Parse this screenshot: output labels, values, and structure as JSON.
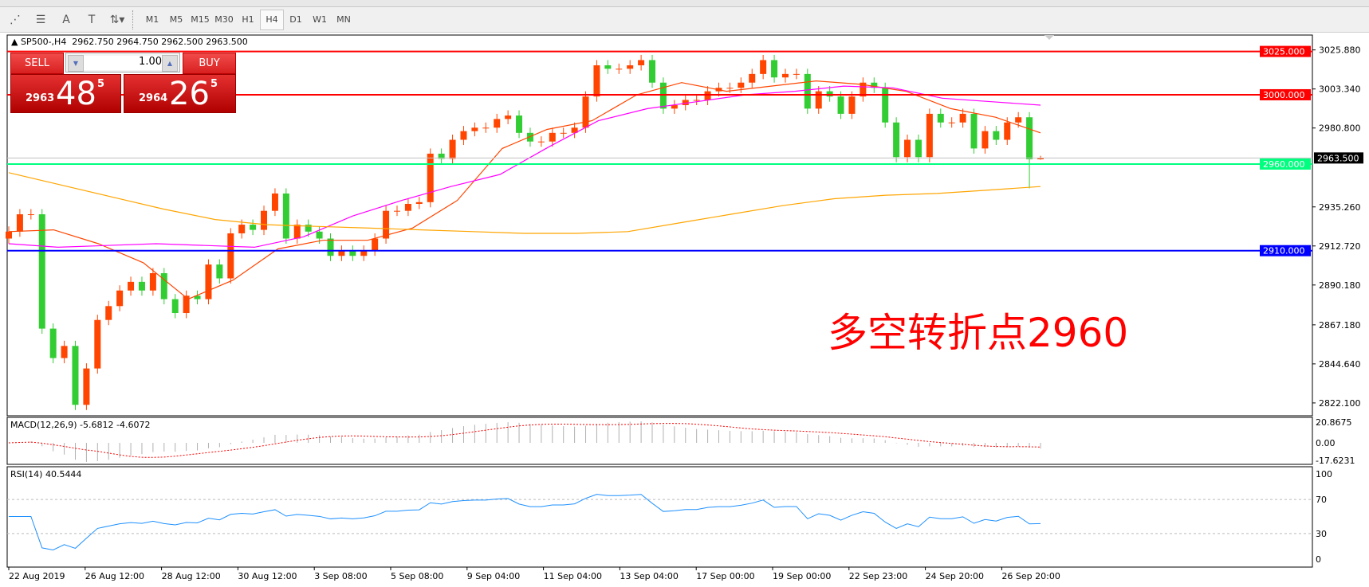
{
  "toolbar": {
    "tools": [
      {
        "icon": "fibonacci-expansion-icon"
      },
      {
        "icon": "fibonacci-fan-icon"
      },
      {
        "icon": "text-icon",
        "label": "A"
      },
      {
        "icon": "text-label-icon",
        "label": "T"
      },
      {
        "icon": "arrows-dropdown-icon"
      }
    ],
    "timeframes": [
      "M1",
      "M5",
      "M15",
      "M30",
      "H1",
      "H4",
      "D1",
      "W1",
      "MN"
    ],
    "active_timeframe": "H4"
  },
  "chart": {
    "header": "SP500-,H4  2962.750 2964.750 2962.500 2963.500",
    "trade_panel": {
      "sell_label": "SELL",
      "buy_label": "BUY",
      "lot": "1.00",
      "sell_price": {
        "prefix": "2963",
        "big": "48",
        "sup": "5"
      },
      "buy_price": {
        "prefix": "2964",
        "big": "26",
        "sup": "5"
      }
    },
    "annotation": "多空转折点2960",
    "annotation_color": "#ff0000"
  },
  "chart_data": {
    "type": "candlestick",
    "symbol": "SP500-",
    "timeframe": "H4",
    "ohlc_last": {
      "open": 2962.75,
      "high": 2964.75,
      "low": 2962.5,
      "close": 2963.5
    },
    "closes": [
      2921,
      2931,
      2931,
      2865,
      2848,
      2855,
      2821,
      2842,
      2870,
      2878,
      2887,
      2892,
      2887,
      2897,
      2882,
      2874,
      2884,
      2882,
      2902,
      2894,
      2920,
      2925,
      2922,
      2933,
      2943,
      2917,
      2925,
      2921,
      2917,
      2907,
      2910,
      2907,
      2910,
      2917,
      2933,
      2933,
      2937,
      2938,
      2966,
      2963,
      2974,
      2979,
      2981,
      2981,
      2986,
      2988,
      2978,
      2973,
      2973,
      2978,
      2978,
      2981,
      2999,
      3017,
      3015,
      3015,
      3017,
      3020,
      3007,
      2992,
      2994,
      2997,
      2997,
      3002,
      3004,
      3004,
      3007,
      3012,
      3020,
      3010,
      3012,
      3012,
      2992,
      3002,
      2999,
      2989,
      2999,
      3007,
      3004,
      2984,
      2964,
      2974,
      2964,
      2989,
      2984,
      2984,
      2989,
      2969,
      2979,
      2974,
      2984,
      2987,
      2962.75,
      2963.5
    ],
    "moving_averages": [
      {
        "color": "#ff4500",
        "values": [
          2921,
          2922,
          2914,
          2903,
          2882,
          2893,
          2911,
          2916,
          2916,
          2923,
          2939,
          2969,
          2980,
          2985,
          3000,
          3007,
          3002,
          3005,
          3008,
          3006,
          3002,
          2992,
          2987,
          2978
        ]
      },
      {
        "color": "#ff00ff",
        "values": [
          2914,
          2912,
          2913,
          2914,
          2913,
          2912,
          2918,
          2930,
          2939,
          2947,
          2954,
          2970,
          2985,
          2992,
          2996,
          3000,
          3002,
          3005,
          3004,
          2998,
          2996,
          2994
        ]
      },
      {
        "color": "#ffa500",
        "values": [
          2955,
          2948,
          2941,
          2934,
          2928,
          2925,
          2924,
          2923,
          2922,
          2921,
          2920,
          2920,
          2921,
          2926,
          2931,
          2936,
          2940,
          2942,
          2943,
          2945,
          2947
        ]
      }
    ],
    "price_axis": [
      "3025.880",
      "3003.340",
      "2980.800",
      "2935.260",
      "2912.720",
      "2890.180",
      "2867.180",
      "2844.640",
      "2822.100"
    ],
    "horizontal_lines": [
      {
        "price": 3025.0,
        "label": "3025.000",
        "color": "#ff0000"
      },
      {
        "price": 3000.0,
        "label": "3000.000",
        "color": "#ff0000"
      },
      {
        "price": 2960.0,
        "label": "2960.000",
        "color": "#00ff7f"
      },
      {
        "price": 2910.0,
        "label": "2910.000",
        "color": "#0000ff"
      }
    ],
    "bid_line": {
      "price": 2963.5,
      "label": "2963.500"
    },
    "x_axis": [
      "22 Aug 2019",
      "26 Aug 12:00",
      "28 Aug 12:00",
      "30 Aug 12:00",
      "3 Sep 08:00",
      "5 Sep 08:00",
      "9 Sep 04:00",
      "11 Sep 04:00",
      "13 Sep 04:00",
      "17 Sep 00:00",
      "19 Sep 00:00",
      "22 Sep 23:00",
      "24 Sep 20:00",
      "26 Sep 20:00"
    ],
    "up_color": "#ff4500",
    "down_color": "#32cd32",
    "macd": {
      "label": "MACD(12,26,9) -5.6812 -4.6072",
      "axis": [
        "20.8675",
        "0.00",
        "-17.6231"
      ],
      "range": [
        -17.6231,
        20.8675
      ]
    },
    "rsi": {
      "label": "RSI(14) 40.5444",
      "axis": [
        "100",
        "70",
        "30",
        "0"
      ],
      "levels": [
        70,
        30
      ],
      "color": "#1e90ff"
    }
  }
}
